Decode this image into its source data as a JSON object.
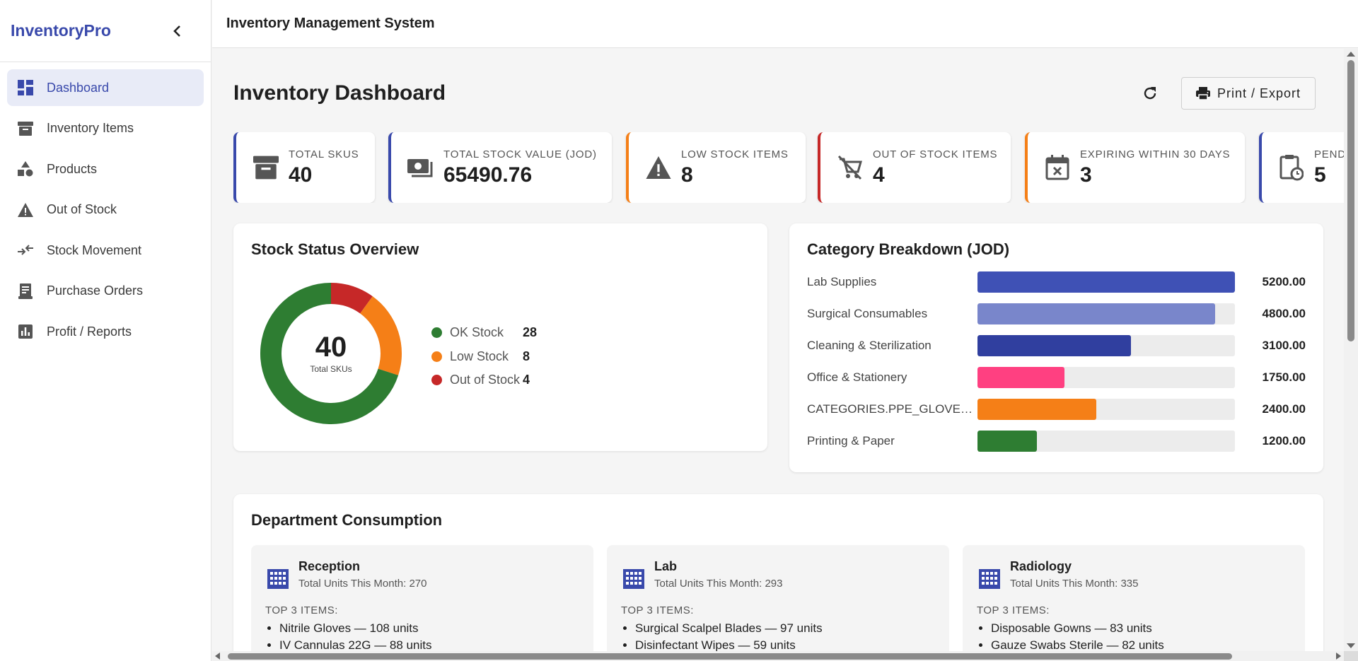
{
  "sidebar": {
    "brand": "InventoryPro",
    "items": [
      {
        "label": "Dashboard",
        "icon": "dashboard-icon",
        "active": true
      },
      {
        "label": "Inventory Items",
        "icon": "archive-box-icon"
      },
      {
        "label": "Products",
        "icon": "shapes-icon"
      },
      {
        "label": "Out of Stock",
        "icon": "warning-icon"
      },
      {
        "label": "Stock Movement",
        "icon": "swap-arrows-icon"
      },
      {
        "label": "Purchase Orders",
        "icon": "receipt-icon"
      },
      {
        "label": "Profit / Reports",
        "icon": "bar-chart-icon"
      }
    ]
  },
  "topbar": {
    "title": "Inventory Management System"
  },
  "header": {
    "title": "Inventory Dashboard",
    "export_label": "Print / Export"
  },
  "kpis": [
    {
      "label": "TOTAL SKUS",
      "value": "40",
      "color": "#3949ab",
      "icon": "archive-box-icon"
    },
    {
      "label": "TOTAL STOCK VALUE (JOD)",
      "value": "65490.76",
      "color": "#3949ab",
      "icon": "money-icon"
    },
    {
      "label": "LOW STOCK ITEMS",
      "value": "8",
      "color": "#f57f17",
      "icon": "warning-icon"
    },
    {
      "label": "OUT OF STOCK ITEMS",
      "value": "4",
      "color": "#c62828",
      "icon": "cart-off-icon"
    },
    {
      "label": "EXPIRING WITHIN 30 DAYS",
      "value": "3",
      "color": "#f57f17",
      "icon": "calendar-x-icon"
    },
    {
      "label": "PENDING",
      "value": "5",
      "color": "#3949ab",
      "icon": "clipboard-clock-icon"
    }
  ],
  "stock_status": {
    "title": "Stock Status Overview",
    "total": "40",
    "total_label": "Total SKUs",
    "legend": [
      {
        "name": "OK Stock",
        "value": "28",
        "color": "#2e7d32"
      },
      {
        "name": "Low Stock",
        "value": "8",
        "color": "#f57f17"
      },
      {
        "name": "Out of Stock",
        "value": "4",
        "color": "#c62828"
      }
    ]
  },
  "chart_data": [
    {
      "type": "pie",
      "categories": [
        "OK Stock",
        "Low Stock",
        "Out of Stock"
      ],
      "values": [
        28,
        8,
        4
      ],
      "colors": [
        "#2e7d32",
        "#f57f17",
        "#c62828"
      ],
      "title": "Stock Status Overview"
    },
    {
      "type": "bar",
      "title": "Category Breakdown (JOD)",
      "categories": [
        "Lab Supplies",
        "Surgical Consumables",
        "Cleaning & Sterilization",
        "Office & Stationery",
        "CATEGORIES.PPE_GLOVES...",
        "Printing & Paper"
      ],
      "values": [
        5200.0,
        4800.0,
        3100.0,
        1750.0,
        2400.0,
        1200.0
      ],
      "labels": [
        "5200.00",
        "4800.00",
        "3100.00",
        "1750.00",
        "2400.00",
        "1200.00"
      ],
      "colors": [
        "#3f51b5",
        "#7986cb",
        "#303f9f",
        "#ff4081",
        "#f57f17",
        "#2e7d32"
      ],
      "xlim": [
        0,
        5200
      ]
    }
  ],
  "departments": {
    "title": "Department Consumption",
    "top_label": "TOP 3 ITEMS:",
    "items": [
      {
        "name": "Reception",
        "total": "Total Units This Month: 270",
        "top": [
          "Nitrile Gloves — 108 units",
          "IV Cannulas 22G — 88 units"
        ]
      },
      {
        "name": "Lab",
        "total": "Total Units This Month: 293",
        "top": [
          "Surgical Scalpel Blades — 97 units",
          "Disinfectant Wipes — 59 units"
        ]
      },
      {
        "name": "Radiology",
        "total": "Total Units This Month: 335",
        "top": [
          "Disposable Gowns — 83 units",
          "Gauze Swabs Sterile — 82 units"
        ]
      }
    ]
  }
}
